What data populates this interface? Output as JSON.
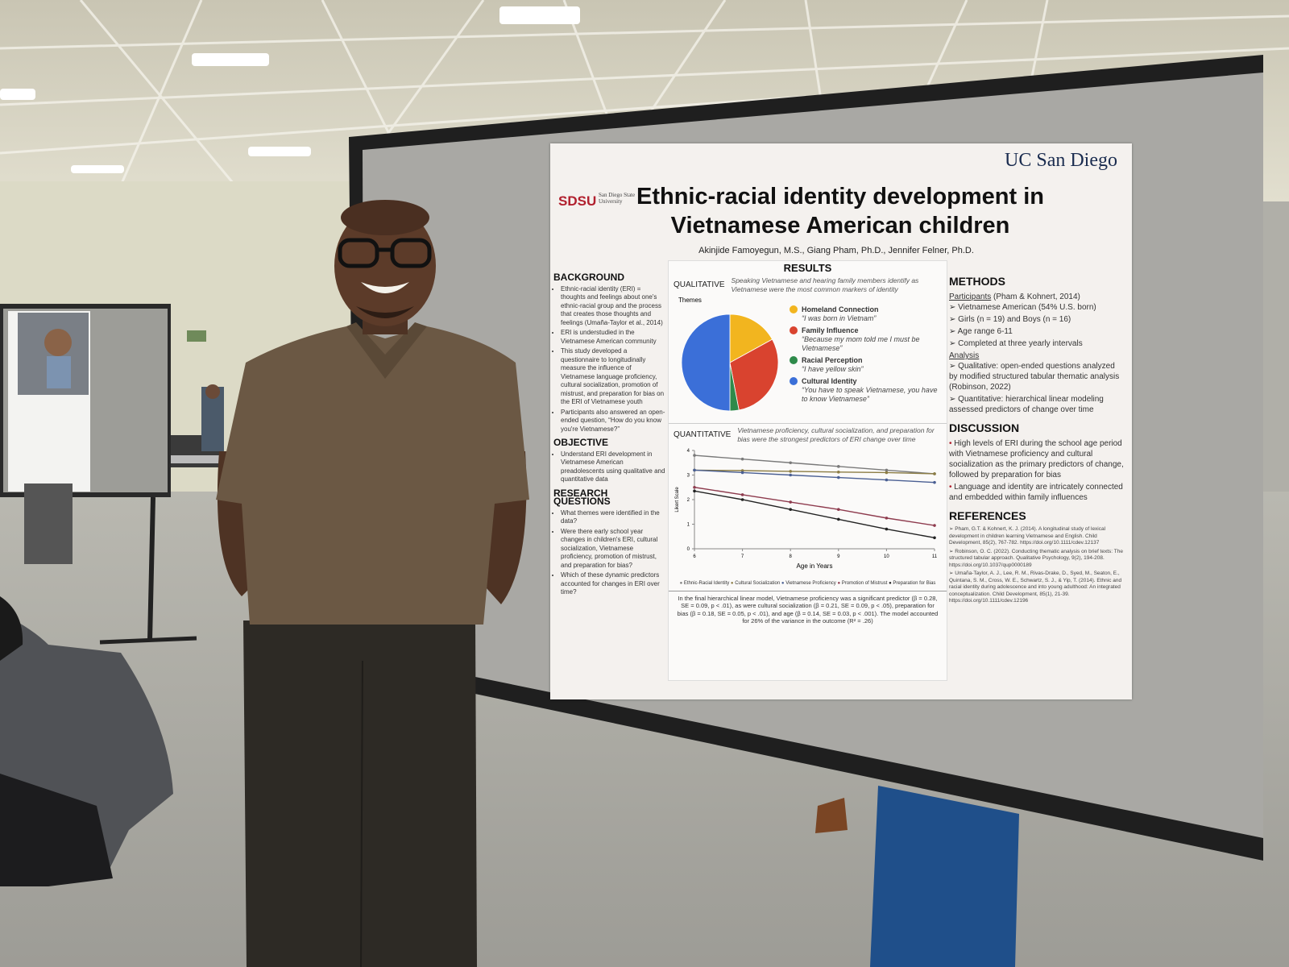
{
  "poster": {
    "logo_left": "SDSU",
    "logo_left_sub": "San Diego State University",
    "logo_right": "UC San Diego",
    "title": "Ethnic-racial identity development in Vietnamese American children",
    "authors": "Akinjide Famoyegun, M.S., Giang Pham, Ph.D., Jennifer Felner, Ph.D.",
    "background": {
      "heading": "BACKGROUND",
      "items": [
        "Ethnic-racial identity (ERI) = thoughts and feelings about one's ethnic-racial group and the process that creates those thoughts and feelings (Umaña-Taylor et al., 2014)",
        "ERI is understudied in the Vietnamese American community",
        "This study developed a questionnaire to longitudinally measure the influence of Vietnamese language proficiency, cultural socialization, promotion of mistrust, and preparation for bias on the ERI of Vietnamese youth",
        "Participants also answered an open-ended question, “How do you know you're Vietnamese?”"
      ]
    },
    "objective": {
      "heading": "OBJECTIVE",
      "items": [
        "Understand ERI development in Vietnamese American preadolescents using qualitative and quantitative data"
      ]
    },
    "research_questions": {
      "heading": "RESEARCH QUESTIONS",
      "items": [
        "What themes were identified in the data?",
        "Were there early school year changes in children's ERI, cultural socialization, Vietnamese proficiency, promotion of mistrust, and preparation for bias?",
        "Which of these dynamic predictors accounted for changes in ERI over time?"
      ]
    },
    "results": {
      "heading": "RESULTS",
      "qualitative_label": "QUALITATIVE",
      "qualitative_summary": "Speaking Vietnamese and hearing family members identify as Vietnamese were the most common markers of identity",
      "quantitative_label": "QUANTITATIVE",
      "quantitative_summary": "Vietnamese proficiency, cultural socialization, and preparation for bias were the strongest predictors of ERI change over time",
      "caption": "In the final hierarchical linear model, Vietnamese proficiency was a significant predictor (β = 0.28, SE = 0.09, p < .01), as were cultural socialization (β = 0.21, SE = 0.09, p < .05), preparation for bias (β = 0.18, SE = 0.05, p < .01), and age (β = 0.14, SE = 0.03, p < .001). The model accounted for 26% of the variance in the outcome (R² = .26)"
    },
    "methods": {
      "heading": "METHODS",
      "participants_label": "Participants",
      "participants_source": "(Pham & Kohnert, 2014)",
      "participants": [
        "Vietnamese American (54% U.S. born)",
        "Girls (n = 19) and Boys (n = 16)",
        "Age range 6-11",
        "Completed at three yearly intervals"
      ],
      "analysis_label": "Analysis",
      "analysis": [
        "Qualitative: open-ended questions analyzed by modified structured tabular thematic analysis (Robinson, 2022)",
        "Quantitative: hierarchical linear modeling assessed predictors of change over time"
      ]
    },
    "discussion": {
      "heading": "DISCUSSION",
      "items": [
        "High levels of ERI during the school age period with Vietnamese proficiency and cultural socialization as the primary predictors of change, followed by preparation for bias",
        "Language and identity are intricately connected and embedded within family influences"
      ]
    },
    "references": {
      "heading": "REFERENCES",
      "items": [
        "Pham, G.T. & Kohnert, K. J. (2014). A longitudinal study of lexical development in children learning Vietnamese and English. Child Development, 85(2), 767-782. https://doi.org/10.1111/cdev.12137",
        "Robinson, O. C. (2022). Conducting thematic analysis on brief texts: The structured tabular approach. Qualitative Psychology, 9(2), 194-208. https://doi.org/10.1037/qup0000189",
        "Umaña-Taylor, A. J., Lee, R. M., Rivas-Drake, D., Syed, M., Seaton, E., Quintana, S. M., Cross, W. E., Schwartz, S. J., & Yip, T. (2014). Ethnic and racial identity during adolescence and into young adulthood: An integrated conceptualization. Child Development, 85(1), 21-39. https://doi.org/10.1111/cdev.12196"
      ]
    }
  },
  "chart_data": [
    {
      "type": "pie",
      "title": "Themes",
      "categories": [
        "Homeland Connection",
        "Family Influence",
        "Racial Perception",
        "Cultural Identity"
      ],
      "values": [
        17,
        30,
        3,
        50
      ],
      "colors": [
        "#f2b51f",
        "#d9432f",
        "#2e8a4a",
        "#3b6fd8"
      ],
      "annotations": [
        "“I was born in Vietnam”",
        "“Because my mom told me I must be Vietnamese”",
        "“I have yellow skin”",
        "“You have to speak Vietnamese, you have to know Vietnamese”"
      ]
    },
    {
      "type": "line",
      "xlabel": "Age in Years",
      "ylabel": "Likert Scale",
      "x": [
        6,
        7,
        8,
        9,
        10,
        11
      ],
      "xlim": [
        6,
        11
      ],
      "xticks": [
        6,
        7,
        8,
        9,
        10,
        11
      ],
      "ylim": [
        0,
        4
      ],
      "yticks": [
        0,
        1,
        2,
        3,
        4
      ],
      "grid": false,
      "series": [
        {
          "name": "Ethnic-Racial Identity",
          "color": "#7a7a7a",
          "values": [
            3.8,
            3.65,
            3.5,
            3.35,
            3.2,
            3.05
          ]
        },
        {
          "name": "Cultural Socialization",
          "color": "#8c7d45",
          "values": [
            3.2,
            3.18,
            3.15,
            3.12,
            3.1,
            3.05
          ]
        },
        {
          "name": "Vietnamese Proficiency",
          "color": "#4a5f93",
          "values": [
            3.2,
            3.1,
            3.0,
            2.9,
            2.8,
            2.7
          ]
        },
        {
          "name": "Promotion of Mistrust",
          "color": "#8e3b4e",
          "values": [
            2.5,
            2.2,
            1.9,
            1.6,
            1.25,
            0.95
          ]
        },
        {
          "name": "Preparation for Bias",
          "color": "#222222",
          "values": [
            2.35,
            2.0,
            1.6,
            1.2,
            0.8,
            0.45
          ]
        }
      ]
    }
  ]
}
